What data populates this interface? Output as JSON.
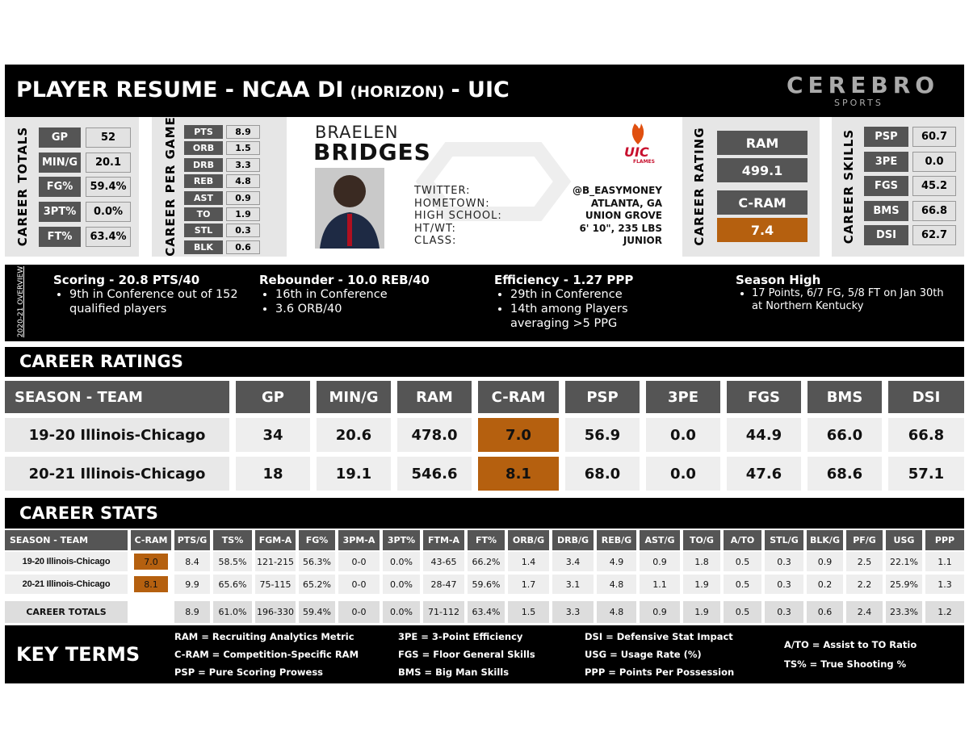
{
  "header": {
    "title": "PLAYER RESUME - NCAA DI",
    "conference": "(HORIZON)",
    "team": "- UIC",
    "brand": "CEREBRO",
    "brand_sub": "SPORTS"
  },
  "career_totals": {
    "label": "CAREER TOTALS",
    "rows": [
      [
        "GP",
        "52"
      ],
      [
        "MIN/G",
        "20.1"
      ],
      [
        "FG%",
        "59.4%"
      ],
      [
        "3PT%",
        "0.0%"
      ],
      [
        "FT%",
        "63.4%"
      ]
    ]
  },
  "per_game": {
    "label": "CAREER PER GAME",
    "rows": [
      [
        "PTS",
        "8.9"
      ],
      [
        "ORB",
        "1.5"
      ],
      [
        "DRB",
        "3.3"
      ],
      [
        "REB",
        "4.8"
      ],
      [
        "AST",
        "0.9"
      ],
      [
        "TO",
        "1.9"
      ],
      [
        "STL",
        "0.3"
      ],
      [
        "BLK",
        "0.6"
      ]
    ]
  },
  "player": {
    "first_name": "BRAELEN",
    "last_name": "BRIDGES",
    "team_logo": "UIC",
    "team_logo_sub": "FLAMES",
    "fields": [
      [
        "TWITTER:",
        "@B_EASYMONEY"
      ],
      [
        "HOMETOWN:",
        "ATLANTA, GA"
      ],
      [
        "HIGH SCHOOL:",
        "UNION GROVE"
      ],
      [
        "HT/WT:",
        "6' 10\", 235 LBS"
      ],
      [
        "CLASS:",
        "JUNIOR"
      ]
    ]
  },
  "career_rating": {
    "label": "CAREER RATING",
    "items": [
      "RAM",
      "499.1",
      "C-RAM",
      "7.4"
    ]
  },
  "career_skills": {
    "label": "CAREER SKILLS",
    "rows": [
      [
        "PSP",
        "60.7"
      ],
      [
        "3PE",
        "0.0"
      ],
      [
        "FGS",
        "45.2"
      ],
      [
        "BMS",
        "66.8"
      ],
      [
        "DSI",
        "62.7"
      ]
    ]
  },
  "overview": {
    "label": "2020-21 OVERVIEW",
    "items": [
      {
        "title": "Scoring - 20.8 PTS/40",
        "bullets": [
          "9th in Conference out of 152 qualified players"
        ]
      },
      {
        "title": "Rebounder - 10.0 REB/40",
        "bullets": [
          "16th in Conference",
          "3.6 ORB/40"
        ]
      },
      {
        "title": "Efficiency - 1.27 PPP",
        "bullets": [
          "29th in Conference",
          "14th among Players averaging >5 PPG"
        ]
      },
      {
        "title": "Season High",
        "bullets": [
          "17 Points, 6/7 FG, 5/8 FT on Jan 30th at Northern Kentucky"
        ]
      }
    ]
  },
  "ratings": {
    "title": "CAREER RATINGS",
    "headers": [
      "SEASON - TEAM",
      "GP",
      "MIN/G",
      "RAM",
      "C-RAM",
      "PSP",
      "3PE",
      "FGS",
      "BMS",
      "DSI"
    ],
    "rows": [
      [
        "19-20 Illinois-Chicago",
        "34",
        "20.6",
        "478.0",
        "7.0",
        "56.9",
        "0.0",
        "44.9",
        "66.0",
        "66.8"
      ],
      [
        "20-21 Illinois-Chicago",
        "18",
        "19.1",
        "546.6",
        "8.1",
        "68.0",
        "0.0",
        "47.6",
        "68.6",
        "57.1"
      ]
    ]
  },
  "stats": {
    "title": "CAREER STATS",
    "headers": [
      "SEASON - TEAM",
      "C-RAM",
      "PTS/G",
      "TS%",
      "FGM-A",
      "FG%",
      "3PM-A",
      "3PT%",
      "FTM-A",
      "FT%",
      "ORB/G",
      "DRB/G",
      "REB/G",
      "AST/G",
      "TO/G",
      "A/TO",
      "STL/G",
      "BLK/G",
      "PF/G",
      "USG",
      "PPP"
    ],
    "rows": [
      [
        "19-20 Illinois-Chicago",
        "7.0",
        "8.4",
        "58.5%",
        "121-215",
        "56.3%",
        "0-0",
        "0.0%",
        "43-65",
        "66.2%",
        "1.4",
        "3.4",
        "4.9",
        "0.9",
        "1.8",
        "0.5",
        "0.3",
        "0.9",
        "2.5",
        "22.1%",
        "1.1"
      ],
      [
        "20-21 Illinois-Chicago",
        "8.1",
        "9.9",
        "65.6%",
        "75-115",
        "65.2%",
        "0-0",
        "0.0%",
        "28-47",
        "59.6%",
        "1.7",
        "3.1",
        "4.8",
        "1.1",
        "1.9",
        "0.5",
        "0.3",
        "0.2",
        "2.2",
        "25.9%",
        "1.3"
      ]
    ],
    "totals": [
      "CAREER TOTALS",
      "",
      "8.9",
      "61.0%",
      "196-330",
      "59.4%",
      "0-0",
      "0.0%",
      "71-112",
      "63.4%",
      "1.5",
      "3.3",
      "4.8",
      "0.9",
      "1.9",
      "0.5",
      "0.3",
      "0.6",
      "2.4",
      "23.3%",
      "1.2"
    ]
  },
  "key_terms": {
    "title": "KEY TERMS",
    "columns": [
      [
        "RAM = Recruiting Analytics Metric",
        "C-RAM = Competition-Specific RAM",
        "PSP = Pure Scoring Prowess"
      ],
      [
        "3PE = 3-Point Efficiency",
        "FGS = Floor General Skills",
        "BMS = Big Man Skills"
      ],
      [
        "DSI = Defensive Stat Impact",
        "USG = Usage Rate (%)",
        "PPP = Points Per Possession"
      ],
      [
        "A/TO = Assist to TO Ratio",
        "TS% = True Shooting %"
      ]
    ]
  }
}
